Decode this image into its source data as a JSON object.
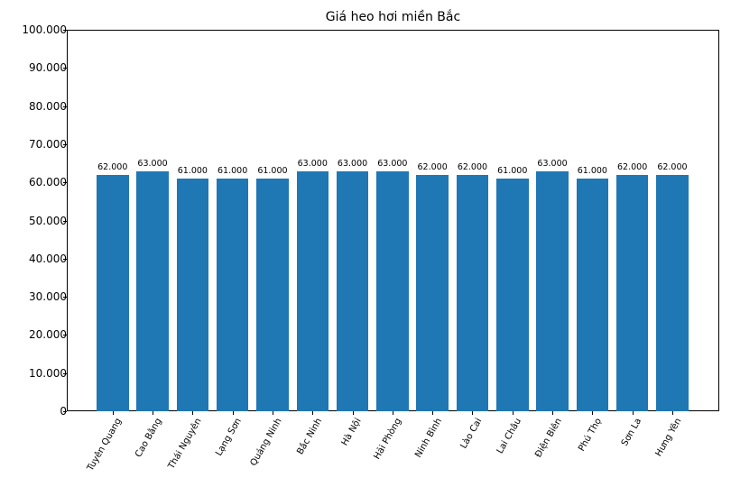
{
  "chart_data": {
    "type": "bar",
    "title": "Giá heo hơi miền Bắc",
    "xlabel": "",
    "ylabel": "",
    "ylim": [
      0,
      100000
    ],
    "grid": false,
    "legend": null,
    "bar_color": "#1f77b4",
    "yticks": [
      0,
      10000,
      20000,
      30000,
      40000,
      50000,
      60000,
      70000,
      80000,
      90000,
      100000
    ],
    "ytick_labels": [
      "0",
      "10.000",
      "20.000",
      "30.000",
      "40.000",
      "50.000",
      "60.000",
      "70.000",
      "80.000",
      "90.000",
      "100.000"
    ],
    "categories": [
      "Tuyên Quang",
      "Cao Bằng",
      "Thái Nguyên",
      "Lạng Sơn",
      "Quảng Ninh",
      "Bắc Ninh",
      "Hà Nội",
      "Hải Phòng",
      "Ninh Bình",
      "Lào Cai",
      "Lai Châu",
      "Điện Biên",
      "Phú Thọ",
      "Sơn La",
      "Hưng Yên"
    ],
    "values": [
      62000,
      63000,
      61000,
      61000,
      61000,
      63000,
      63000,
      63000,
      62000,
      62000,
      61000,
      63000,
      61000,
      62000,
      62000
    ],
    "value_labels": [
      "62.000",
      "63.000",
      "61.000",
      "61.000",
      "61.000",
      "63.000",
      "63.000",
      "63.000",
      "62.000",
      "62.000",
      "61.000",
      "63.000",
      "61.000",
      "62.000",
      "62.000"
    ]
  }
}
